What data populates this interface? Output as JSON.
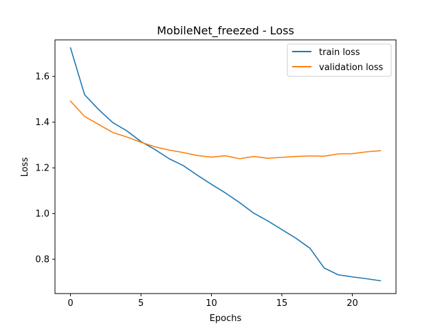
{
  "chart_data": {
    "type": "line",
    "title": "MobileNet_freezed - Loss",
    "xlabel": "Epochs",
    "ylabel": "Loss",
    "xlim": [
      -1.1,
      23.1
    ],
    "ylim": [
      0.65,
      1.76
    ],
    "xticks": [
      0,
      5,
      10,
      15,
      20
    ],
    "yticks": [
      0.8,
      1.0,
      1.2,
      1.4,
      1.6
    ],
    "xtick_labels": [
      "0",
      "5",
      "10",
      "15",
      "20"
    ],
    "ytick_labels": [
      "0.8",
      "1.0",
      "1.2",
      "1.4",
      "1.6"
    ],
    "grid": false,
    "legend_position": "top-right",
    "x": [
      0,
      1,
      2,
      3,
      4,
      5,
      6,
      7,
      8,
      9,
      10,
      11,
      12,
      13,
      14,
      15,
      16,
      17,
      18,
      19,
      20,
      21,
      22
    ],
    "series": [
      {
        "name": "train loss",
        "color": "#1f77b4",
        "values": [
          1.725,
          1.52,
          1.455,
          1.398,
          1.362,
          1.315,
          1.28,
          1.24,
          1.21,
          1.168,
          1.128,
          1.09,
          1.048,
          1.002,
          0.968,
          0.93,
          0.892,
          0.848,
          0.762,
          0.732,
          0.723,
          0.715,
          0.706
        ]
      },
      {
        "name": "validation loss",
        "color": "#ff7f0e",
        "values": [
          1.492,
          1.425,
          1.39,
          1.355,
          1.335,
          1.312,
          1.292,
          1.278,
          1.267,
          1.254,
          1.247,
          1.253,
          1.24,
          1.25,
          1.242,
          1.246,
          1.25,
          1.252,
          1.251,
          1.261,
          1.262,
          1.27,
          1.275
        ]
      }
    ]
  }
}
